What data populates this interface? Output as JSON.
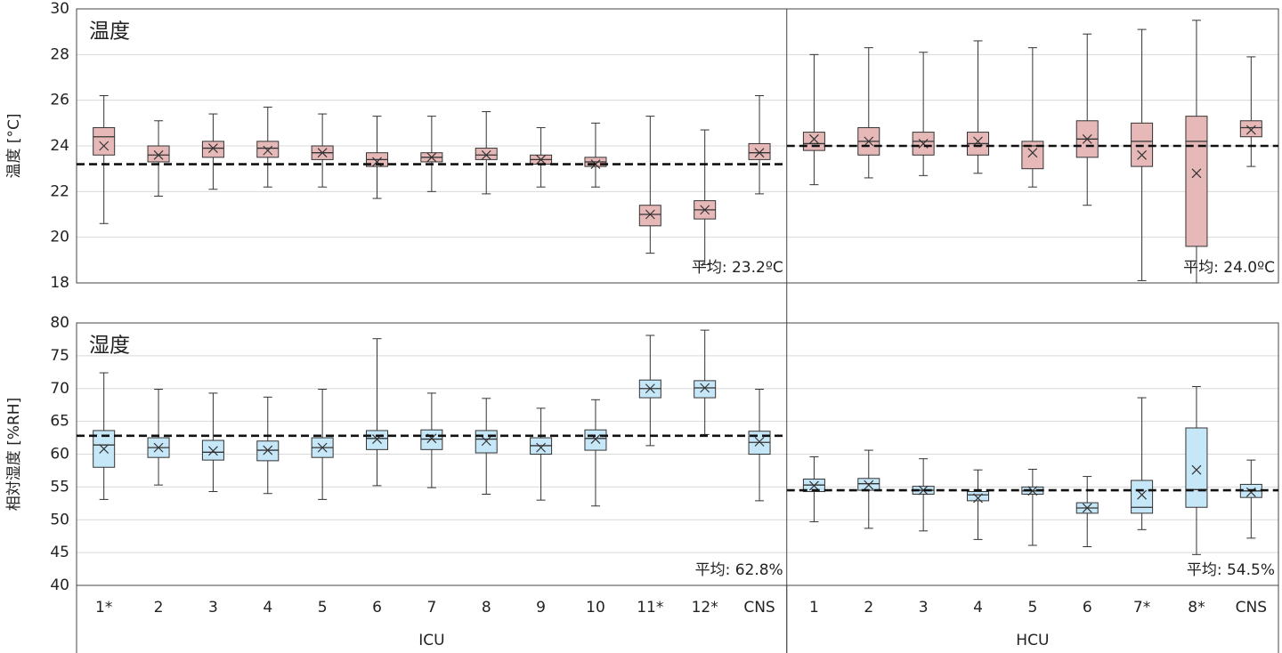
{
  "chart_data": {
    "type": "boxplot",
    "groups": [
      {
        "name": "ICU",
        "categories": [
          "1*",
          "2",
          "3",
          "4",
          "5",
          "6",
          "7",
          "8",
          "9",
          "10",
          "11*",
          "12*",
          "CNS"
        ]
      },
      {
        "name": "HCU",
        "categories": [
          "1",
          "2",
          "3",
          "4",
          "5",
          "6",
          "7*",
          "8*",
          "CNS"
        ]
      }
    ],
    "panels": [
      {
        "title": "温度",
        "ylabel": "温度 [°C]",
        "color": "#e6b9b8",
        "ylim": [
          18,
          30
        ],
        "yticks": [
          18,
          20,
          22,
          24,
          26,
          28,
          30
        ],
        "grid": true,
        "min": [
          20.6,
          21.8,
          22.1,
          22.2,
          22.2,
          21.7,
          22.0,
          21.9,
          22.2,
          22.2,
          19.3,
          18.8,
          21.9,
          22.3,
          22.6,
          22.7,
          22.8,
          22.2,
          21.4,
          18.1,
          18.0,
          23.1
        ],
        "q1": [
          23.6,
          23.3,
          23.5,
          23.5,
          23.4,
          23.1,
          23.3,
          23.4,
          23.2,
          23.1,
          20.5,
          20.8,
          23.4,
          23.8,
          23.6,
          23.6,
          23.6,
          23.0,
          23.5,
          23.1,
          19.6,
          24.4
        ],
        "median": [
          24.4,
          23.6,
          23.9,
          23.9,
          23.7,
          23.4,
          23.5,
          23.6,
          23.4,
          23.3,
          21.0,
          21.2,
          23.7,
          24.1,
          24.2,
          24.2,
          24.1,
          24.0,
          24.3,
          24.2,
          24.2,
          24.8
        ],
        "q3": [
          24.8,
          24.0,
          24.2,
          24.2,
          24.0,
          23.7,
          23.7,
          23.9,
          23.6,
          23.5,
          21.4,
          21.6,
          24.1,
          24.6,
          24.8,
          24.6,
          24.6,
          24.2,
          25.1,
          25.0,
          25.3,
          25.1
        ],
        "max": [
          26.2,
          25.1,
          25.4,
          25.7,
          25.4,
          25.3,
          25.3,
          25.5,
          24.8,
          25.0,
          25.3,
          24.7,
          26.2,
          28.0,
          28.3,
          28.1,
          28.6,
          28.3,
          28.9,
          29.1,
          29.5,
          27.9
        ],
        "mean": [
          24.0,
          23.6,
          23.9,
          23.8,
          23.7,
          23.3,
          23.5,
          23.6,
          23.4,
          23.2,
          21.0,
          21.2,
          23.7,
          24.3,
          24.2,
          24.1,
          24.2,
          23.7,
          24.3,
          23.6,
          22.8,
          24.7
        ],
        "reference_lines": [
          {
            "value": 23.2,
            "label": "平均: 23.2ºC"
          },
          {
            "value": 24.0,
            "label": "平均: 24.0ºC"
          }
        ]
      },
      {
        "title": "湿度",
        "ylabel": "相対湿度 [%RH]",
        "color": "#c6e7f8",
        "ylim": [
          40,
          80
        ],
        "yticks": [
          40,
          45,
          50,
          55,
          60,
          65,
          70,
          75,
          80
        ],
        "grid": true,
        "min": [
          53.1,
          55.3,
          54.3,
          54.0,
          53.1,
          55.2,
          54.9,
          53.9,
          53.0,
          52.1,
          61.3,
          63.0,
          52.9,
          49.7,
          48.7,
          48.3,
          47.0,
          46.1,
          45.9,
          48.5,
          44.7,
          47.2
        ],
        "q1": [
          58.0,
          59.5,
          59.1,
          59.0,
          59.5,
          60.7,
          60.7,
          60.2,
          60.0,
          60.6,
          68.6,
          68.6,
          60.0,
          54.3,
          54.5,
          53.9,
          52.9,
          53.9,
          51.0,
          51.0,
          51.9,
          53.4
        ],
        "median": [
          61.4,
          61.0,
          60.3,
          60.6,
          61.0,
          62.4,
          62.3,
          62.3,
          61.3,
          62.4,
          70.0,
          70.1,
          61.8,
          55.3,
          55.5,
          54.5,
          53.8,
          54.4,
          51.8,
          51.9,
          54.6,
          54.4
        ],
        "q3": [
          63.6,
          62.5,
          62.1,
          62.0,
          62.5,
          63.6,
          63.7,
          63.6,
          62.5,
          63.7,
          71.3,
          71.2,
          63.5,
          56.2,
          56.3,
          55.1,
          54.3,
          55.0,
          52.6,
          56.0,
          64.0,
          55.4
        ],
        "max": [
          72.4,
          69.9,
          69.3,
          68.7,
          69.9,
          77.6,
          69.3,
          68.5,
          67.0,
          68.3,
          78.1,
          78.9,
          69.9,
          59.6,
          60.6,
          59.3,
          57.6,
          57.7,
          56.6,
          68.6,
          70.3,
          59.1
        ],
        "mean": [
          60.8,
          61.0,
          60.5,
          60.6,
          61.0,
          62.3,
          62.4,
          62.0,
          61.0,
          62.3,
          70.0,
          70.1,
          61.9,
          55.2,
          55.3,
          54.5,
          53.3,
          54.4,
          51.8,
          53.8,
          57.6,
          54.2
        ],
        "reference_lines": [
          {
            "value": 62.8,
            "label": "平均: 62.8%"
          },
          {
            "value": 54.5,
            "label": "平均: 54.5%"
          }
        ]
      }
    ]
  }
}
